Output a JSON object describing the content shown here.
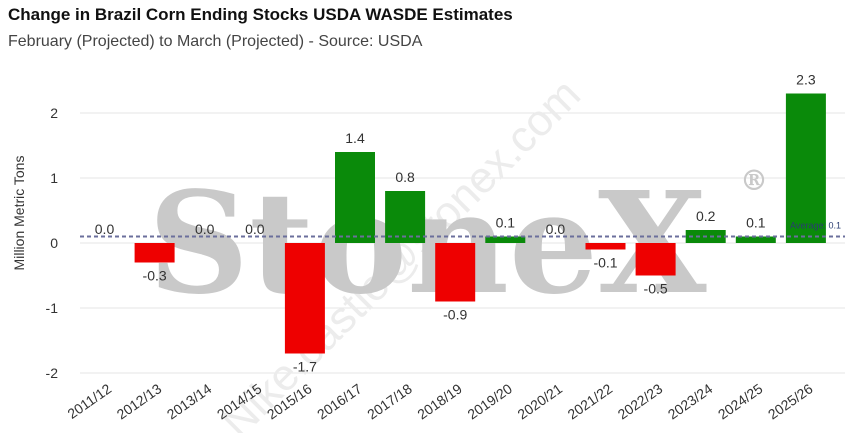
{
  "chart_data": {
    "type": "bar",
    "title": "Change in Brazil Corn Ending Stocks USDA WASDE Estimates",
    "subtitle": "February (Projected) to March (Projected) - Source: USDA",
    "ylabel": "Million Metric Tons",
    "xlabel": "",
    "categories": [
      "2011/12",
      "2012/13",
      "2013/14",
      "2014/15",
      "2015/16",
      "2016/17",
      "2017/18",
      "2018/19",
      "2019/20",
      "2020/21",
      "2021/22",
      "2022/23",
      "2023/24",
      "2024/25",
      "2025/26"
    ],
    "values": [
      0.0,
      -0.3,
      0.0,
      0.0,
      -1.7,
      1.4,
      0.8,
      -0.9,
      0.1,
      0.0,
      -0.1,
      -0.5,
      0.2,
      0.1,
      2.3
    ],
    "value_labels": [
      "0.0",
      "-0.3",
      "0.0",
      "0.0",
      "-1.7",
      "1.4",
      "0.8",
      "-0.9",
      "0.1",
      "0.0",
      "-0.1",
      "-0.5",
      "0.2",
      "0.1",
      "2.3"
    ],
    "yticks": [
      -2,
      -1,
      0,
      1,
      2
    ],
    "ytick_labels": [
      "-2",
      "-1",
      "0",
      "1",
      "2"
    ],
    "ylim": [
      -2,
      2.3
    ],
    "grid": true,
    "average": {
      "value": 0.1,
      "label": "Average: 0.1"
    },
    "colors": {
      "positive": "#0a8a0a",
      "negative": "#ee0000",
      "average_line": "#6b6f9c",
      "grid": "#e6e6e6"
    },
    "watermark": {
      "brand": "StoneX",
      "mark": "®",
      "user_text": "Nike.castle@stonex.com"
    }
  }
}
